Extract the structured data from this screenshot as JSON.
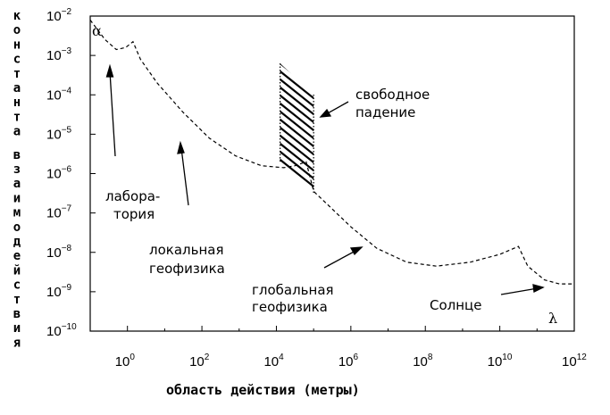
{
  "chart_data": {
    "type": "line",
    "xlabel": "область действия (метры)",
    "ylabel": "константа взаимодействия",
    "x_scale": "log",
    "y_scale": "log",
    "xlim_exp": [
      -1,
      12
    ],
    "ylim_exp": [
      -10,
      -2
    ],
    "x_tick_exponents": [
      0,
      2,
      4,
      6,
      8,
      10,
      12
    ],
    "y_tick_exponents": [
      -2,
      -3,
      -4,
      -5,
      -6,
      -7,
      -8,
      -9,
      -10
    ],
    "tick_base": "10",
    "corner_labels": {
      "y": "α",
      "x": "λ"
    },
    "series": [
      {
        "style": "dashed",
        "points": [
          [
            -1.0,
            -2.1
          ],
          [
            -0.6,
            -2.6
          ],
          [
            -0.3,
            -2.85
          ],
          [
            -0.05,
            -2.8
          ],
          [
            0.15,
            -2.65
          ],
          [
            0.35,
            -3.1
          ],
          [
            0.8,
            -3.7
          ],
          [
            1.5,
            -4.45
          ],
          [
            2.2,
            -5.1
          ],
          [
            2.9,
            -5.55
          ],
          [
            3.6,
            -5.8
          ],
          [
            4.2,
            -5.85
          ],
          [
            4.5,
            -5.8
          ],
          [
            4.8,
            -5.7
          ],
          [
            5.0,
            -6.45
          ],
          [
            5.5,
            -6.9
          ],
          [
            6.0,
            -7.35
          ],
          [
            6.7,
            -7.9
          ],
          [
            7.5,
            -8.25
          ],
          [
            8.3,
            -8.35
          ],
          [
            9.2,
            -8.25
          ],
          [
            10.0,
            -8.05
          ],
          [
            10.5,
            -7.85
          ],
          [
            10.75,
            -8.35
          ],
          [
            11.2,
            -8.7
          ],
          [
            11.6,
            -8.8
          ],
          [
            12.0,
            -8.8
          ]
        ]
      }
    ],
    "shaded_region": {
      "x": [
        4.1,
        5.0
      ],
      "y_top_left": -3.2,
      "y_bottom_right": -6.5
    },
    "annotations": [
      {
        "text": [
          "лабора-",
          "тория"
        ]
      },
      {
        "text": [
          "локальная",
          "геофизика"
        ]
      },
      {
        "text": [
          "глобальная",
          "геофизика"
        ]
      },
      {
        "text": [
          "Солнце"
        ]
      },
      {
        "text": [
          "свободное",
          "падение"
        ]
      }
    ]
  }
}
